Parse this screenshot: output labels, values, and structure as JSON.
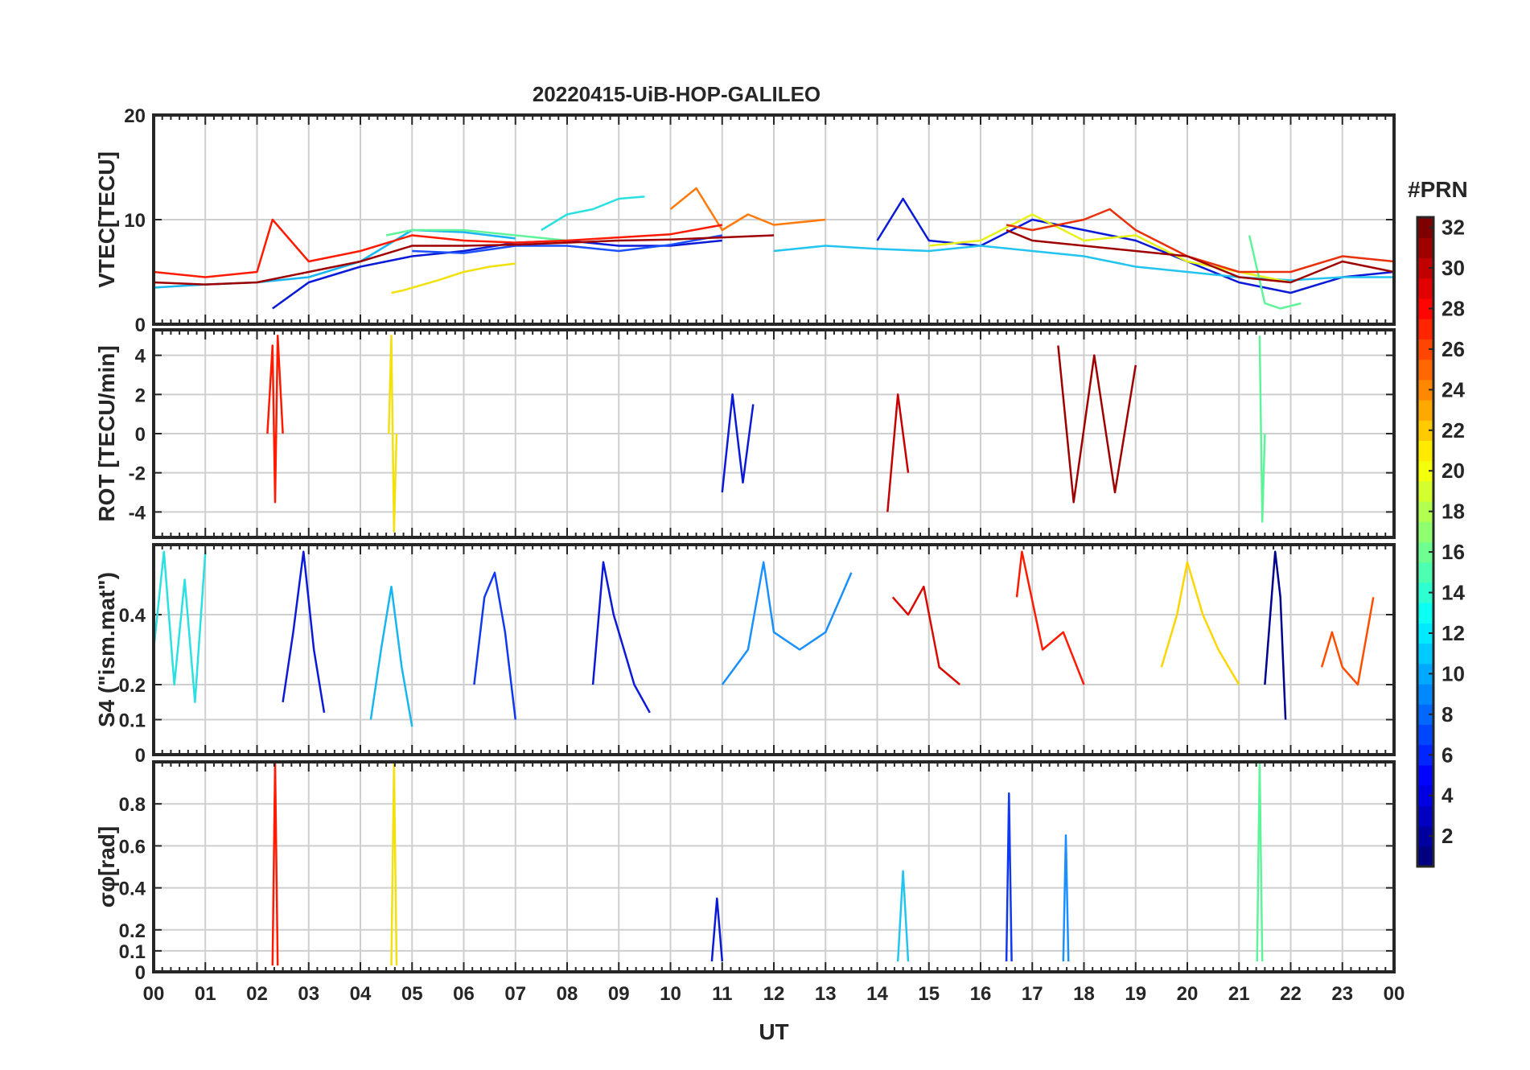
{
  "chart_data": {
    "type": "line",
    "title": "20220415-UiB-HOP-GALILEO",
    "xlabel": "UT",
    "xlim": [
      0,
      24
    ],
    "x_tick_labels": [
      "00",
      "01",
      "02",
      "03",
      "04",
      "05",
      "06",
      "07",
      "08",
      "09",
      "10",
      "11",
      "12",
      "13",
      "14",
      "15",
      "16",
      "17",
      "18",
      "19",
      "20",
      "21",
      "22",
      "23",
      "00"
    ],
    "colorbar": {
      "label": "#PRN",
      "range": [
        1,
        32
      ],
      "tick_labels": [
        "2",
        "4",
        "6",
        "8",
        "10",
        "12",
        "14",
        "16",
        "18",
        "20",
        "22",
        "24",
        "26",
        "28",
        "30",
        "32"
      ],
      "colormap": "jet"
    },
    "panels": [
      {
        "id": "vtec",
        "ylabel": "VTEC[TECU]",
        "ylim": [
          0,
          20
        ],
        "ticks": [
          0,
          10,
          20
        ],
        "tick_labels": [
          "0",
          "10",
          "20"
        ],
        "series": [
          {
            "prn": 2,
            "color": "#0a1ad6",
            "x": [
              2.3,
              3,
              4,
              5,
              6,
              7,
              8,
              9,
              10,
              11
            ],
            "y": [
              1.5,
              4,
              5.5,
              6.5,
              7,
              7.8,
              8,
              7.5,
              7.5,
              8
            ]
          },
          {
            "prn": 5,
            "color": "#1a50ff",
            "x": [
              5,
              6,
              7,
              8,
              9,
              10,
              11
            ],
            "y": [
              7,
              6.8,
              7.5,
              7.5,
              7,
              7.6,
              8.5
            ]
          },
          {
            "prn": 10,
            "color": "#17b6f0",
            "x": [
              0,
              1,
              2,
              3,
              4,
              5,
              6,
              7
            ],
            "y": [
              3.5,
              3.8,
              4.0,
              4.5,
              6,
              9,
              8.8,
              8.2
            ]
          },
          {
            "prn": 12,
            "color": "#2ae0e0",
            "x": [
              7.5,
              8,
              8.5,
              9,
              9.5
            ],
            "y": [
              9,
              10.5,
              11,
              12,
              12.2
            ]
          },
          {
            "prn": 16,
            "color": "#5ff49a",
            "x": [
              4.5,
              5,
              6,
              7,
              8
            ],
            "y": [
              8.5,
              9,
              9,
              8.5,
              8
            ]
          },
          {
            "prn": 20,
            "color": "#f2e10f",
            "x": [
              4.6,
              4.8,
              5.5,
              6,
              6.5,
              7
            ],
            "y": [
              3,
              3.2,
              4.2,
              5,
              5.5,
              5.8
            ]
          },
          {
            "prn": 24,
            "color": "#ff7a0a",
            "x": [
              10,
              10.5,
              11,
              11.5,
              12,
              13
            ],
            "y": [
              11,
              13,
              9,
              10.5,
              9.5,
              10
            ]
          },
          {
            "prn": 27,
            "color": "#ff1a00",
            "x": [
              0,
              1,
              2,
              2.3,
              3,
              4,
              5,
              6,
              7,
              8,
              9,
              10,
              11
            ],
            "y": [
              5,
              4.5,
              5,
              10,
              6,
              7,
              8.5,
              8,
              7.8,
              8,
              8.3,
              8.6,
              9.5
            ]
          },
          {
            "prn": 31,
            "color": "#9e0000",
            "x": [
              0,
              1,
              2,
              3,
              4,
              5,
              6,
              7,
              8,
              9,
              10,
              11,
              12
            ],
            "y": [
              4,
              3.8,
              4,
              5,
              6,
              7.5,
              7.5,
              7.6,
              7.8,
              8,
              8.1,
              8.3,
              8.5
            ]
          },
          {
            "prn": 3,
            "color": "#0a1ad6",
            "x": [
              14,
              14.5,
              15,
              16,
              17,
              18,
              19,
              20,
              21,
              22,
              23,
              24
            ],
            "y": [
              8,
              12,
              8,
              7.5,
              10,
              9,
              8,
              6,
              4,
              3,
              4.5,
              5
            ]
          },
          {
            "prn": 11,
            "color": "#23c4f0",
            "x": [
              12,
              13,
              14,
              15,
              16,
              17,
              18,
              19,
              20,
              21,
              22,
              23,
              24
            ],
            "y": [
              7,
              7.5,
              7.2,
              7,
              7.5,
              7,
              6.5,
              5.5,
              5,
              4.5,
              4.2,
              4.5,
              4.5
            ]
          },
          {
            "prn": 19,
            "color": "#e6f21a",
            "x": [
              15,
              16,
              17,
              18,
              19,
              20,
              21,
              22
            ],
            "y": [
              7.5,
              8,
              10.5,
              8,
              8.5,
              6,
              5,
              4
            ]
          },
          {
            "prn": 15,
            "color": "#5ff49a",
            "x": [
              21.2,
              21.5,
              21.8,
              22.2
            ],
            "y": [
              8.5,
              2,
              1.5,
              2
            ]
          },
          {
            "prn": 26,
            "color": "#e8300a",
            "x": [
              16.5,
              17,
              18,
              18.5,
              19,
              20,
              21,
              22,
              23,
              24
            ],
            "y": [
              9.5,
              9,
              10,
              11,
              9,
              6.5,
              5,
              5,
              6.5,
              6
            ]
          },
          {
            "prn": 32,
            "color": "#9e0000",
            "x": [
              16.5,
              17,
              18,
              19,
              20,
              21,
              22,
              23,
              24
            ],
            "y": [
              9,
              8,
              7.5,
              7,
              6.5,
              4.5,
              4,
              6,
              5
            ]
          }
        ]
      },
      {
        "id": "rot",
        "ylabel": "ROT [TECU/min]",
        "ylim": [
          -5.3,
          5.3
        ],
        "ticks": [
          -4,
          -2,
          0,
          2,
          4
        ],
        "tick_labels": [
          "-4",
          "-2",
          "0",
          "2",
          "4"
        ],
        "note": "Noisy ROT traces around zero with spikes near 02:20 (~±5), 04:40 (~±5), 11–13 UT, 14–15 UT and 16.5–19.5 UT (~±4.5), 21:25 (~±5)",
        "series": [
          {
            "prn": 27,
            "color": "#ff1a00",
            "x": [
              2.2,
              2.3,
              2.35,
              2.4,
              2.5
            ],
            "y": [
              0,
              4.5,
              -3.5,
              5,
              0
            ]
          },
          {
            "prn": 20,
            "color": "#f2e10f",
            "x": [
              4.55,
              4.6,
              4.65,
              4.7
            ],
            "y": [
              0,
              5,
              -5,
              0
            ]
          },
          {
            "prn": 3,
            "color": "#0a1ad6",
            "x": [
              11,
              11.2,
              11.4,
              11.6
            ],
            "y": [
              -3,
              2,
              -2.5,
              1.5
            ]
          },
          {
            "prn": 30,
            "color": "#c40000",
            "x": [
              14.2,
              14.4,
              14.6
            ],
            "y": [
              -4,
              2,
              -2
            ]
          },
          {
            "prn": 31,
            "color": "#9e0000",
            "x": [
              17.5,
              17.8,
              18.2,
              18.6,
              19
            ],
            "y": [
              4.5,
              -3.5,
              4,
              -3,
              3.5
            ]
          },
          {
            "prn": 15,
            "color": "#5ff49a",
            "x": [
              21.4,
              21.45,
              21.5
            ],
            "y": [
              5,
              -4.5,
              0
            ]
          }
        ]
      },
      {
        "id": "s4",
        "ylabel": "S4 (\"ism.mat\")",
        "ylim": [
          0,
          0.6
        ],
        "ticks": [
          0,
          0.1,
          0.2,
          0.4
        ],
        "tick_labels": [
          "0",
          "0.1",
          "0.2",
          "0.4"
        ],
        "series": [
          {
            "prn": 3,
            "color": "#0a1ad6",
            "x": [
              2.5,
              2.7,
              2.9,
              3.1,
              3.3
            ],
            "y": [
              0.15,
              0.35,
              0.58,
              0.3,
              0.12
            ]
          },
          {
            "prn": 10,
            "color": "#17b6f0",
            "x": [
              4.2,
              4.4,
              4.6,
              4.8,
              5
            ],
            "y": [
              0.1,
              0.3,
              0.48,
              0.25,
              0.08
            ]
          },
          {
            "prn": 4,
            "color": "#1038ee",
            "x": [
              6.2,
              6.4,
              6.6,
              6.8,
              7
            ],
            "y": [
              0.2,
              0.45,
              0.52,
              0.35,
              0.1
            ]
          },
          {
            "prn": 2,
            "color": "#0a1ad6",
            "x": [
              8.5,
              8.7,
              8.9,
              9.1,
              9.3,
              9.6
            ],
            "y": [
              0.2,
              0.55,
              0.4,
              0.3,
              0.2,
              0.12
            ]
          },
          {
            "prn": 9,
            "color": "#1a90ff",
            "x": [
              11,
              11.5,
              11.8,
              12,
              12.5,
              13,
              13.5
            ],
            "y": [
              0.2,
              0.3,
              0.55,
              0.35,
              0.3,
              0.35,
              0.52
            ]
          },
          {
            "prn": 29,
            "color": "#d80a00",
            "x": [
              14.3,
              14.6,
              14.9,
              15.2,
              15.6
            ],
            "y": [
              0.45,
              0.4,
              0.48,
              0.25,
              0.2
            ]
          },
          {
            "prn": 28,
            "color": "#ff1a00",
            "x": [
              16.7,
              16.8,
              17.2,
              17.6,
              18
            ],
            "y": [
              0.45,
              0.58,
              0.3,
              0.35,
              0.2
            ]
          },
          {
            "prn": 21,
            "color": "#ffd500",
            "x": [
              19.5,
              19.8,
              20,
              20.3,
              20.6,
              21
            ],
            "y": [
              0.25,
              0.4,
              0.55,
              0.4,
              0.3,
              0.2
            ]
          },
          {
            "prn": 1,
            "color": "#00008f",
            "x": [
              21.5,
              21.7,
              21.8,
              21.9
            ],
            "y": [
              0.2,
              0.58,
              0.45,
              0.1
            ]
          },
          {
            "prn": 25,
            "color": "#ff4d00",
            "x": [
              22.6,
              22.8,
              23,
              23.3,
              23.6
            ],
            "y": [
              0.25,
              0.35,
              0.25,
              0.2,
              0.45
            ]
          },
          {
            "prn": 12,
            "color": "#2ae0e0",
            "x": [
              0,
              0.2,
              0.4,
              0.6,
              0.8,
              1.0
            ],
            "y": [
              0.3,
              0.58,
              0.2,
              0.5,
              0.15,
              0.58
            ]
          }
        ]
      },
      {
        "id": "sigma_phi",
        "ylabel": "σφ[rad]",
        "ylim": [
          0,
          1
        ],
        "ticks": [
          0,
          0.1,
          0.2,
          0.4,
          0.6,
          0.8
        ],
        "tick_labels": [
          "0",
          "0.1",
          "0.2",
          "0.4",
          "0.6",
          "0.8"
        ],
        "series": [
          {
            "prn": 27,
            "color": "#ff1a00",
            "x": [
              2.3,
              2.35,
              2.4
            ],
            "y": [
              0.03,
              1.0,
              0.03
            ]
          },
          {
            "prn": 20,
            "color": "#f2e10f",
            "x": [
              4.6,
              4.65,
              4.7
            ],
            "y": [
              0.03,
              1.0,
              0.03
            ]
          },
          {
            "prn": 3,
            "color": "#0a1ad6",
            "x": [
              10.8,
              10.9,
              11.0
            ],
            "y": [
              0.05,
              0.35,
              0.05
            ]
          },
          {
            "prn": 11,
            "color": "#23c4f0",
            "x": [
              14.4,
              14.5,
              14.6
            ],
            "y": [
              0.05,
              0.48,
              0.05
            ]
          },
          {
            "prn": 4,
            "color": "#1038ee",
            "x": [
              16.5,
              16.55,
              16.6
            ],
            "y": [
              0.05,
              0.85,
              0.05
            ]
          },
          {
            "prn": 9,
            "color": "#1a90ff",
            "x": [
              17.6,
              17.65,
              17.7
            ],
            "y": [
              0.05,
              0.65,
              0.05
            ]
          },
          {
            "prn": 15,
            "color": "#5ff49a",
            "x": [
              21.35,
              21.4,
              21.45
            ],
            "y": [
              0.05,
              1.0,
              0.05
            ]
          }
        ]
      }
    ]
  }
}
